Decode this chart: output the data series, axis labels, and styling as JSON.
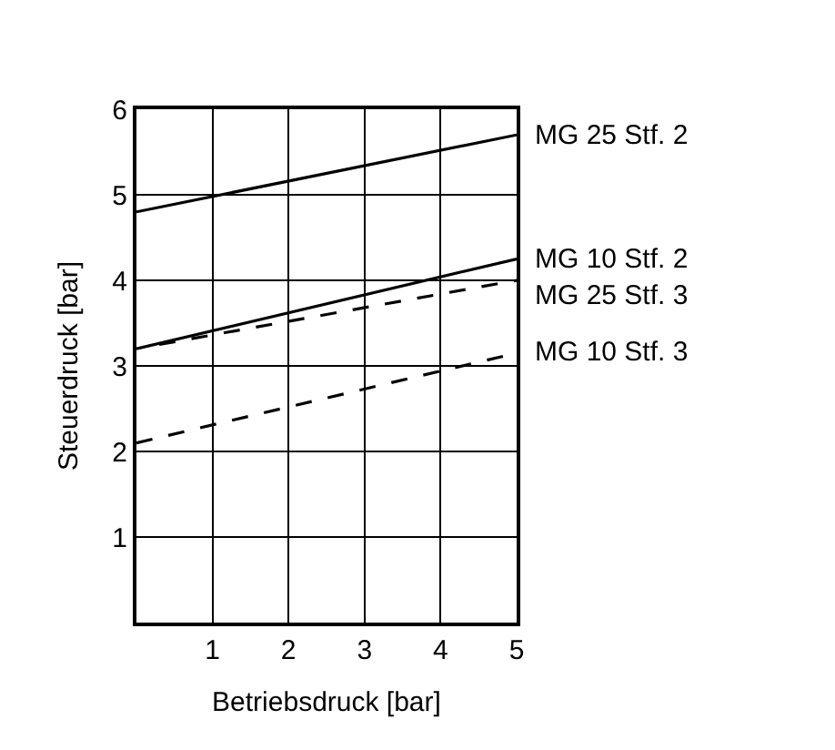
{
  "chart_data": {
    "type": "line",
    "xlabel": "Betriebsdruck [bar]",
    "ylabel": "Steuerdruck [bar]",
    "xlim": [
      0,
      5
    ],
    "ylim": [
      0,
      6
    ],
    "xticks": [
      1,
      2,
      3,
      4,
      5
    ],
    "yticks": [
      1,
      2,
      3,
      4,
      5,
      6
    ],
    "grid": true,
    "legend": false,
    "marker": "none",
    "series": [
      {
        "name": "MG 25 Stf. 2",
        "color": "#000000",
        "x": [
          0,
          5
        ],
        "values": [
          4.8,
          5.7
        ],
        "line_style": "solid"
      },
      {
        "name": "MG 10 Stf. 2",
        "color": "#000000",
        "x": [
          0,
          5
        ],
        "values": [
          3.2,
          4.25
        ],
        "line_style": "solid"
      },
      {
        "name": "MG 25 Stf. 3",
        "color": "#000000",
        "x": [
          0.3,
          5
        ],
        "values": [
          3.25,
          4.0
        ],
        "line_style": "dashed"
      },
      {
        "name": "MG 10 Stf. 3",
        "color": "#000000",
        "x": [
          0,
          5
        ],
        "values": [
          2.1,
          3.15
        ],
        "line_style": "dashed"
      }
    ]
  }
}
